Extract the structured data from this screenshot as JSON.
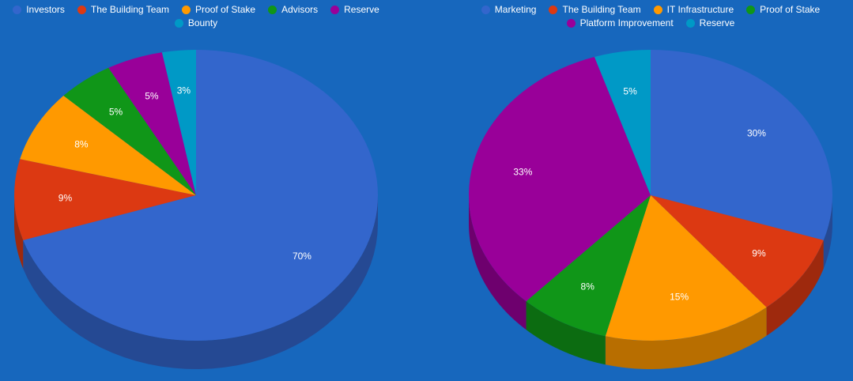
{
  "chart_data": [
    {
      "type": "pie",
      "categories": [
        "Investors",
        "The Building Team",
        "Proof of Stake",
        "Advisors",
        "Reserve",
        "Bounty"
      ],
      "values": [
        70,
        9,
        8,
        5,
        5,
        3
      ],
      "value_labels": [
        "70%",
        "9%",
        "8%",
        "5%",
        "5%",
        "3%"
      ],
      "colors": [
        "#3366cc",
        "#dc3912",
        "#ff9900",
        "#109618",
        "#990099",
        "#0099c6"
      ]
    },
    {
      "type": "pie",
      "categories": [
        "Marketing",
        "The Building Team",
        "IT Infrastructure",
        "Proof of Stake",
        "Platform Improvement",
        "Reserve"
      ],
      "values": [
        30,
        9,
        15,
        8,
        33,
        5
      ],
      "value_labels": [
        "30%",
        "9%",
        "15%",
        "8%",
        "33%",
        "5%"
      ],
      "colors": [
        "#3366cc",
        "#dc3912",
        "#ff9900",
        "#109618",
        "#990099",
        "#0099c6"
      ]
    }
  ]
}
